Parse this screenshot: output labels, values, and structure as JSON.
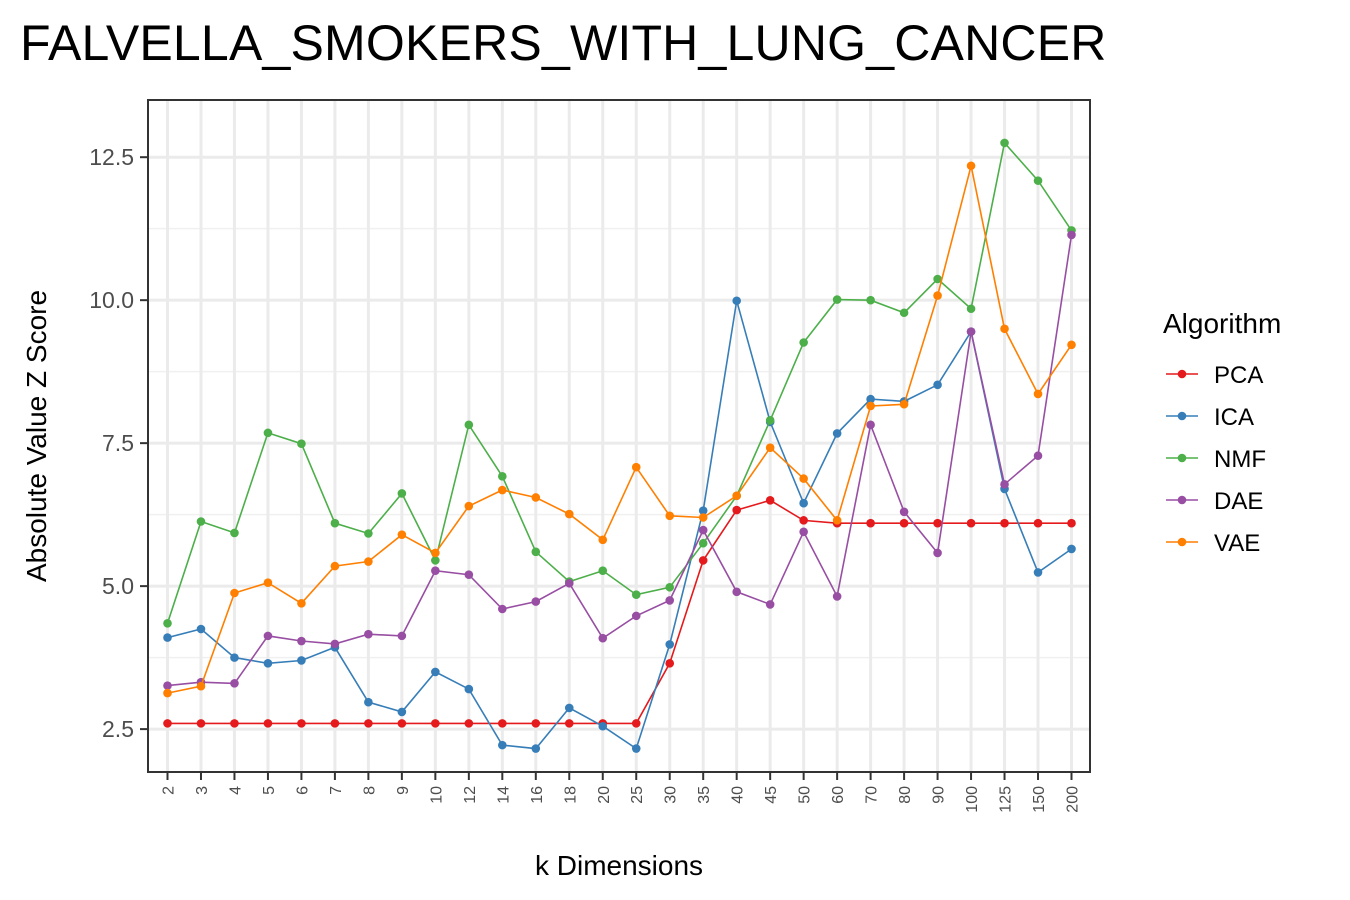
{
  "chart_data": {
    "type": "line",
    "title": "FALVELLA_SMOKERS_WITH_LUNG_CANCER",
    "xlabel": "k Dimensions",
    "ylabel": "Absolute Value Z Score",
    "ylim": [
      1.75,
      13.5
    ],
    "y_ticks": [
      "2.5",
      "5.0",
      "7.5",
      "10.0",
      "12.5"
    ],
    "grid": true,
    "legend_position": "right",
    "legend_title": "Algorithm",
    "categories": [
      "2",
      "3",
      "4",
      "5",
      "6",
      "7",
      "8",
      "9",
      "10",
      "12",
      "14",
      "16",
      "18",
      "20",
      "25",
      "30",
      "35",
      "40",
      "45",
      "50",
      "60",
      "70",
      "80",
      "90",
      "100",
      "125",
      "150",
      "200"
    ],
    "series": [
      {
        "name": "PCA",
        "color": "#E41A1C",
        "values": [
          2.6,
          2.6,
          2.6,
          2.6,
          2.6,
          2.6,
          2.6,
          2.6,
          2.6,
          2.6,
          2.6,
          2.6,
          2.6,
          2.6,
          2.6,
          3.65,
          5.45,
          6.33,
          6.5,
          6.15,
          6.1,
          6.1,
          6.1,
          6.1,
          6.1,
          6.1,
          6.1,
          6.1
        ]
      },
      {
        "name": "ICA",
        "color": "#377EB8",
        "values": [
          4.1,
          4.25,
          3.75,
          3.65,
          3.7,
          3.93,
          2.97,
          2.8,
          3.5,
          3.2,
          2.22,
          2.16,
          2.87,
          2.55,
          2.16,
          3.98,
          6.32,
          9.99,
          7.87,
          6.45,
          7.67,
          8.27,
          8.23,
          8.52,
          9.45,
          6.7,
          5.24,
          5.65
        ]
      },
      {
        "name": "NMF",
        "color": "#4DAF4A",
        "values": [
          4.35,
          6.13,
          5.93,
          7.68,
          7.49,
          6.1,
          5.92,
          6.62,
          5.45,
          7.82,
          6.92,
          5.6,
          5.08,
          5.27,
          4.85,
          4.98,
          5.75,
          6.58,
          7.9,
          9.26,
          10.01,
          10.0,
          9.78,
          10.37,
          9.85,
          12.75,
          12.09,
          11.22
        ]
      },
      {
        "name": "DAE",
        "color": "#984EA3",
        "values": [
          3.26,
          3.32,
          3.3,
          4.13,
          4.04,
          3.99,
          4.16,
          4.13,
          5.27,
          5.2,
          4.6,
          4.73,
          5.05,
          4.09,
          4.48,
          4.75,
          5.98,
          4.9,
          4.68,
          5.95,
          4.82,
          7.82,
          6.3,
          5.58,
          9.45,
          6.78,
          7.28,
          11.14
        ]
      },
      {
        "name": "VAE",
        "color": "#FF7F00",
        "values": [
          3.13,
          3.25,
          4.88,
          5.06,
          4.7,
          5.35,
          5.43,
          5.9,
          5.58,
          6.4,
          6.68,
          6.55,
          6.26,
          5.81,
          7.08,
          6.23,
          6.2,
          6.58,
          7.42,
          6.88,
          6.15,
          8.15,
          8.18,
          10.08,
          12.35,
          9.5,
          8.36,
          9.22
        ]
      }
    ]
  }
}
